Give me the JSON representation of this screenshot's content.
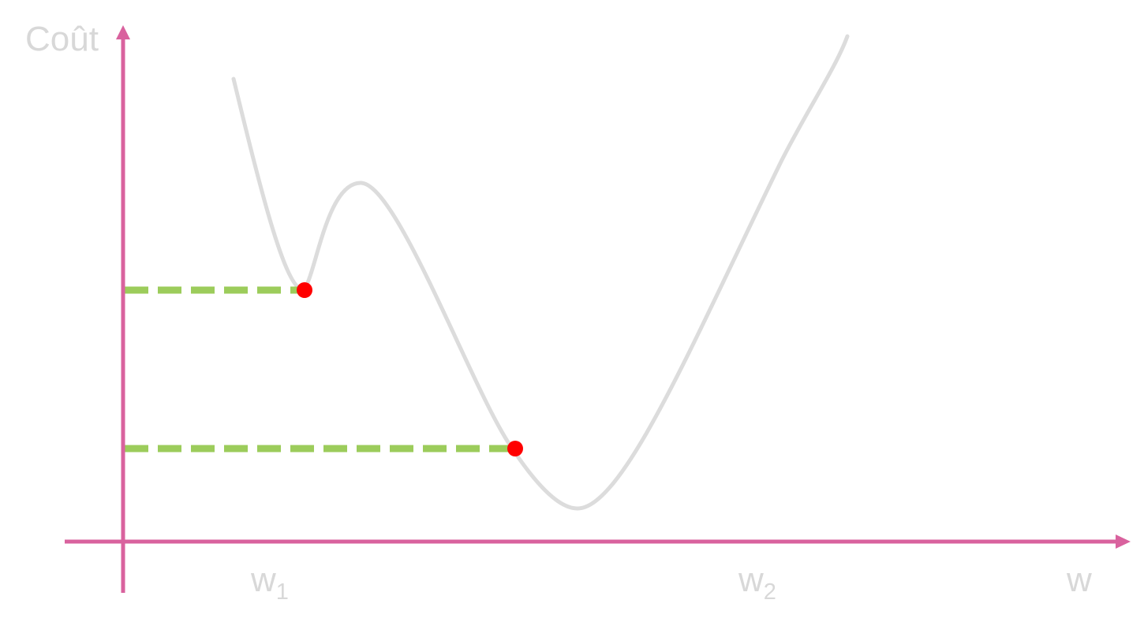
{
  "diagram": {
    "y_axis_label": "Coût",
    "x_axis_label": "w",
    "markers": [
      {
        "base": "w",
        "subscript": "1"
      },
      {
        "base": "w",
        "subscript": "2"
      }
    ],
    "points": [
      {
        "name": "local-minimum"
      },
      {
        "name": "lower-point"
      }
    ],
    "colors": {
      "axes": "#d9629e",
      "curve": "#dcdcdc",
      "guides": "#9ccc5b",
      "points": "#ff0000",
      "labels": "#d8d8d8"
    }
  }
}
